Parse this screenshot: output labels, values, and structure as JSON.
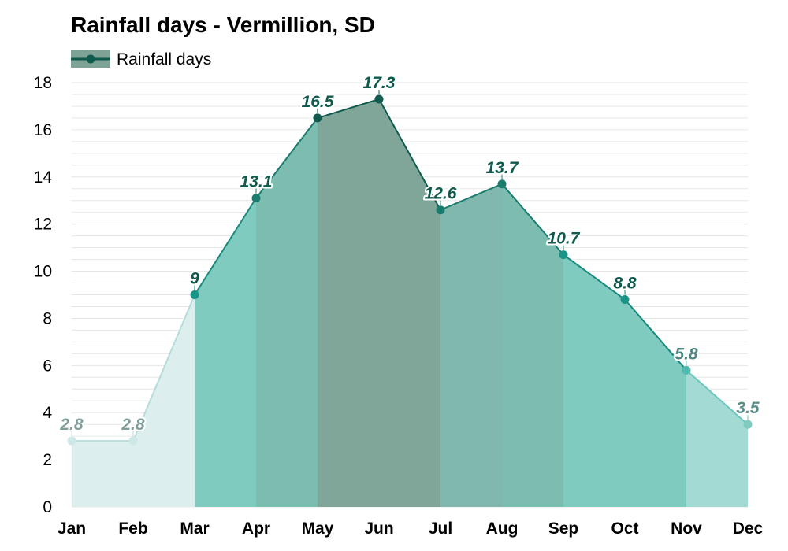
{
  "chart_data": {
    "type": "area",
    "title": "Rainfall days - Vermillion, SD",
    "categories": [
      "Jan",
      "Feb",
      "Mar",
      "Apr",
      "May",
      "Jun",
      "Jul",
      "Aug",
      "Sep",
      "Oct",
      "Nov",
      "Dec"
    ],
    "series": [
      {
        "name": "Rainfall days",
        "values": [
          2.8,
          2.8,
          9,
          13.1,
          16.5,
          17.3,
          12.6,
          13.7,
          10.7,
          8.8,
          5.8,
          3.5
        ]
      }
    ],
    "data_labels": [
      "2.8",
      "2.8",
      "9",
      "13.1",
      "16.5",
      "17.3",
      "12.6",
      "13.7",
      "10.7",
      "8.8",
      "5.8",
      "3.5"
    ],
    "yticks": [
      "0",
      "2",
      "4",
      "6",
      "8",
      "10",
      "12",
      "14",
      "16",
      "18"
    ],
    "ylim": [
      0,
      18
    ],
    "xlabel": "",
    "ylabel": "",
    "grid": true,
    "legend": "top-left",
    "colors": {
      "band_colors": [
        "#dceeee",
        "#dceeee",
        "#7fcbc0",
        "#7cbdb0",
        "#80a699",
        "#80a699",
        "#80b8ae",
        "#7cbdb0",
        "#7fcbc0",
        "#7fcbc0",
        "#a3dad3",
        "#bde4e2"
      ],
      "line_colors": [
        "#b6dcd9",
        "#b6dcd9",
        "#1a8a7e",
        "#1a7c6e",
        "#0f5a4d",
        "#0f5a4d",
        "#1a7c6e",
        "#1a7c6e",
        "#1a8a7e",
        "#1a8a7e",
        "#6cc6bc",
        "#8fd0c8"
      ],
      "point_colors": [
        "#cde8e6",
        "#cde8e6",
        "#1a9486",
        "#1a7c6e",
        "#0f5a4d",
        "#0f5a4d",
        "#1a7c6e",
        "#1a7c6e",
        "#1a9486",
        "#1a9486",
        "#4dbcae",
        "#7fcbc0"
      ],
      "label_colors": [
        "#7f9e9a",
        "#7f9e9a",
        "#0f5a4d",
        "#0f5a4d",
        "#0f5a4d",
        "#0f5a4d",
        "#0f5a4d",
        "#0f5a4d",
        "#0f5a4d",
        "#0f5a4d",
        "#4e8580",
        "#5b8f8a"
      ],
      "legend_fill": "#7ea396",
      "legend_line": "#0f5a4d",
      "grid": "#e6e6e6"
    }
  }
}
